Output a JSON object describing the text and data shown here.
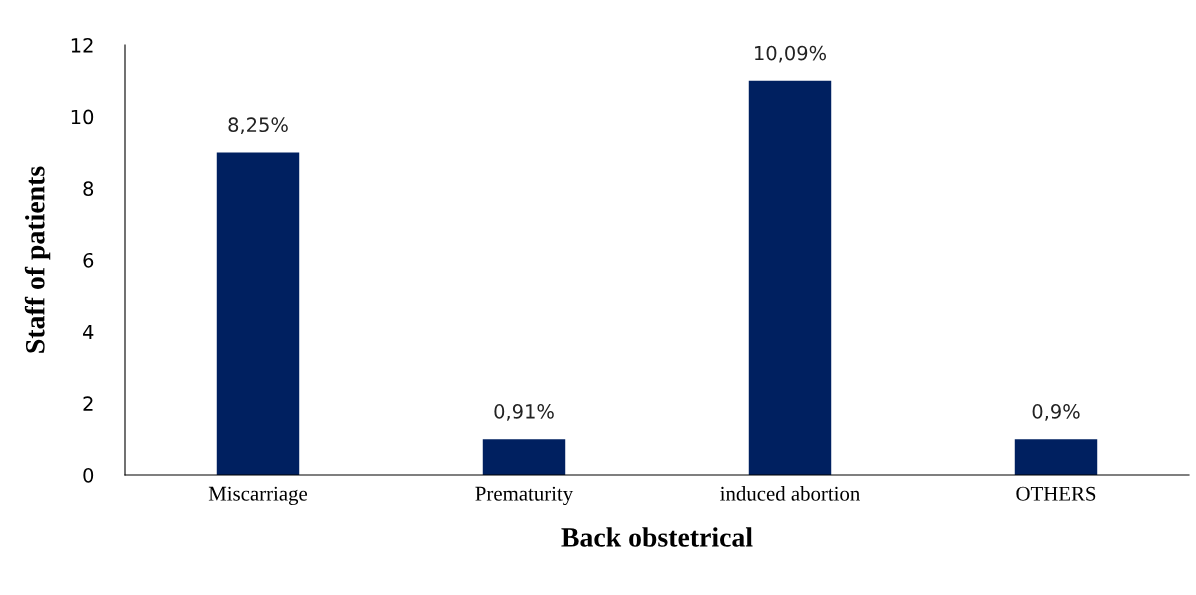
{
  "chart_data": {
    "type": "bar",
    "xlabel": "Back obstetrical",
    "ylabel": "Staff of patients",
    "categories": [
      "Miscarriage",
      "Prematurity",
      "induced abortion",
      "OTHERS"
    ],
    "values": [
      9,
      1,
      11,
      1
    ],
    "color": "#002060",
    "annotations": [
      {
        "text": "8,25%",
        "x": "Miscarriage",
        "y": 9
      },
      {
        "text": "0,91%",
        "x": "Prematurity",
        "y": 1
      },
      {
        "text": "10,09%",
        "x": "induced abortion",
        "y": 11
      },
      {
        "text": "0,9%",
        "x": "OTHERS",
        "y": 1
      }
    ],
    "ylim": [
      0,
      12
    ],
    "yticks": [
      0,
      2,
      4,
      6,
      8,
      10,
      12
    ],
    "grid": false,
    "legend": false
  }
}
